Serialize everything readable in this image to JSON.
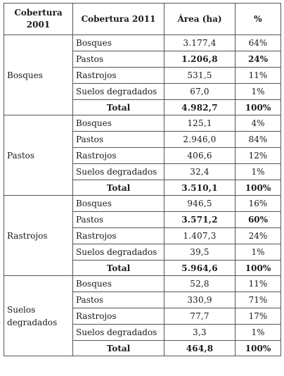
{
  "headers": {
    "col1": "Cobertura 2001",
    "col2": "Cobertura 2011",
    "col3": "Área (ha)",
    "col4": "%"
  },
  "groups": [
    {
      "name": "Bosques",
      "rows": [
        {
          "cover": "Bosques",
          "area": "3.177,4",
          "pct": "64%",
          "bold": false
        },
        {
          "cover": "Pastos",
          "area": "1.206,8",
          "pct": "24%",
          "bold": true
        },
        {
          "cover": "Rastrojos",
          "area": "531,5",
          "pct": "11%",
          "bold": false
        },
        {
          "cover": "Suelos degradados",
          "area": "67,0",
          "pct": "1%",
          "bold": false
        }
      ],
      "total": {
        "label": "Total",
        "area": "4.982,7",
        "pct": "100%"
      }
    },
    {
      "name": "Pastos",
      "rows": [
        {
          "cover": "Bosques",
          "area": "125,1",
          "pct": "4%",
          "bold": false
        },
        {
          "cover": "Pastos",
          "area": "2.946,0",
          "pct": "84%",
          "bold": false
        },
        {
          "cover": "Rastrojos",
          "area": "406,6",
          "pct": "12%",
          "bold": false
        },
        {
          "cover": "Suelos degradados",
          "area": "32,4",
          "pct": "1%",
          "bold": false
        }
      ],
      "total": {
        "label": "Total",
        "area": "3.510,1",
        "pct": "100%"
      }
    },
    {
      "name": "Rastrojos",
      "rows": [
        {
          "cover": "Bosques",
          "area": "946,5",
          "pct": "16%",
          "bold": false
        },
        {
          "cover": "Pastos",
          "area": "3.571,2",
          "pct": "60%",
          "bold": true
        },
        {
          "cover": "Rastrojos",
          "area": "1.407,3",
          "pct": "24%",
          "bold": false
        },
        {
          "cover": "Suelos degradados",
          "area": "39,5",
          "pct": "1%",
          "bold": false
        }
      ],
      "total": {
        "label": "Total",
        "area": "5.964,6",
        "pct": "100%"
      }
    },
    {
      "name": "Suelos degradados",
      "rows": [
        {
          "cover": "Bosques",
          "area": "52,8",
          "pct": "11%",
          "bold": false
        },
        {
          "cover": "Pastos",
          "area": "330,9",
          "pct": "71%",
          "bold": false
        },
        {
          "cover": "Rastrojos",
          "area": "77,7",
          "pct": "17%",
          "bold": false
        },
        {
          "cover": "Suelos degradados",
          "area": "3,3",
          "pct": "1%",
          "bold": false
        }
      ],
      "total": {
        "label": "Total",
        "area": "464,8",
        "pct": "100%"
      }
    }
  ]
}
